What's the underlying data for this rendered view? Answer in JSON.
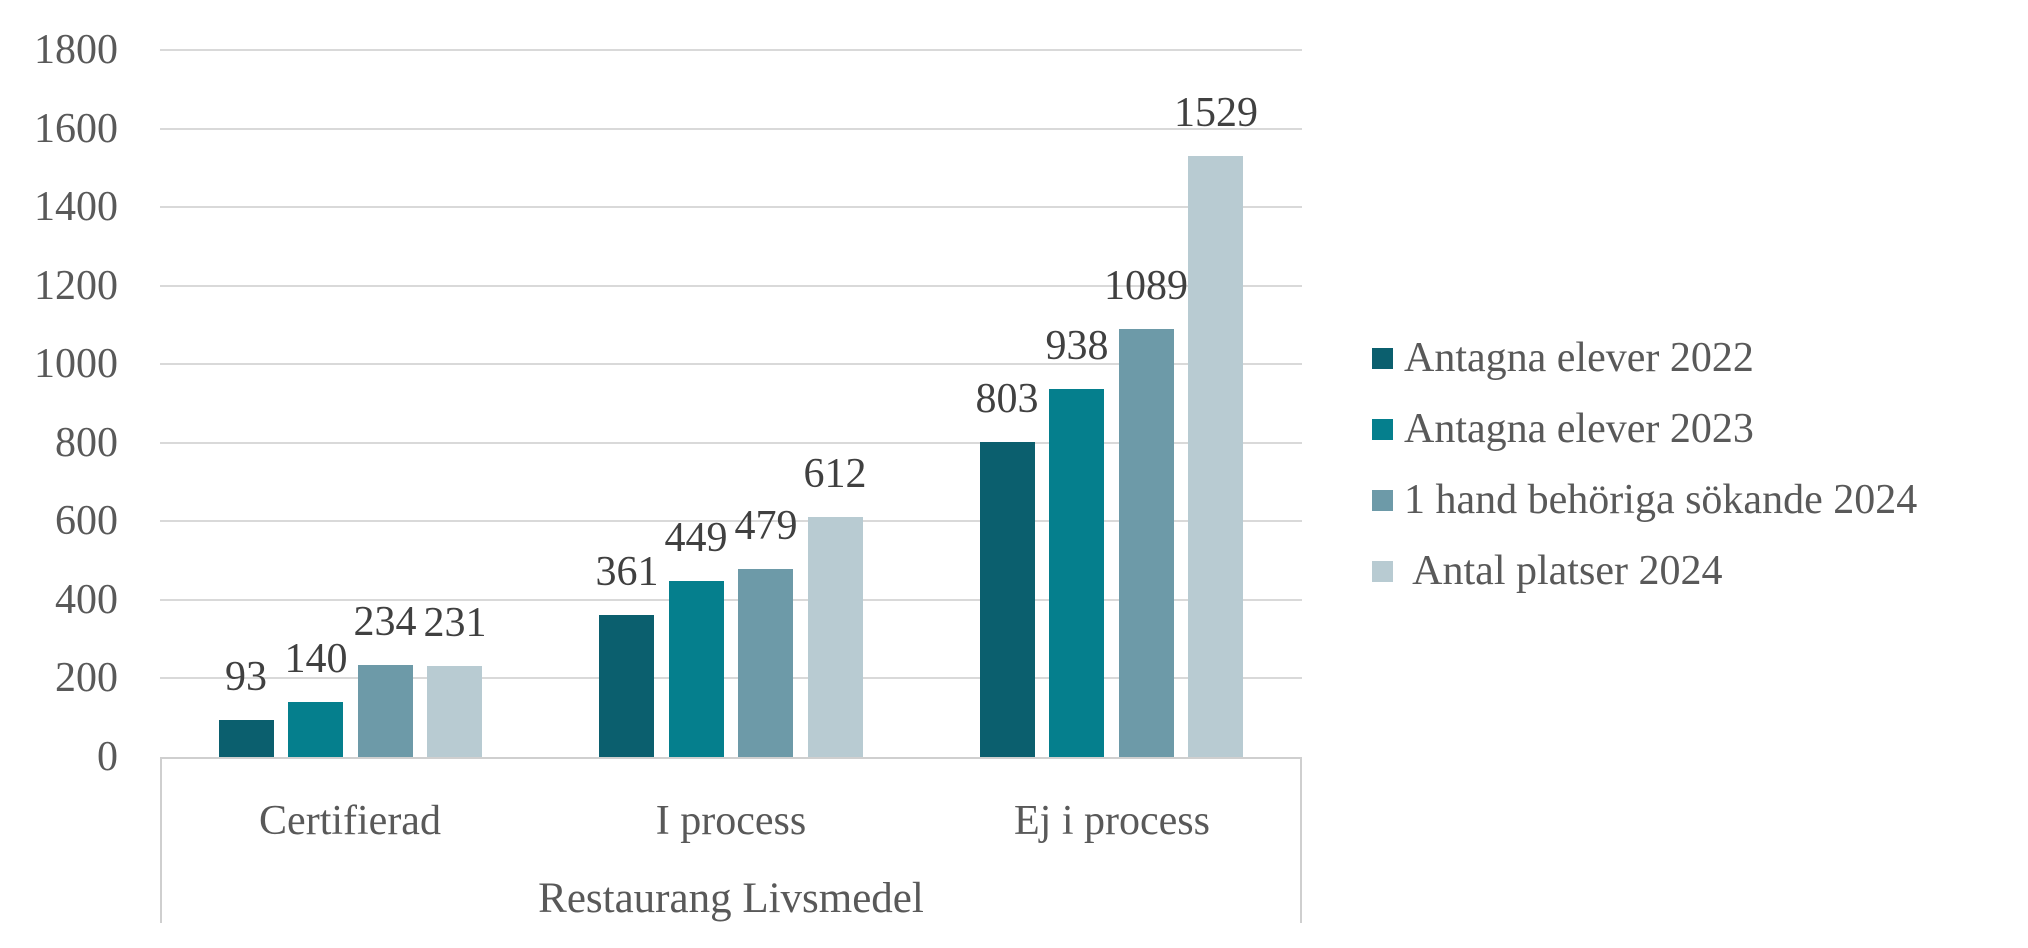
{
  "chart_data": {
    "type": "bar",
    "title": "",
    "categories": [
      "Certifierad",
      "I process",
      "Ej i process"
    ],
    "axis_group_label": "Restaurang Livsmedel",
    "series": [
      {
        "name": "Antagna elever 2022",
        "color": "#0b5f6e",
        "values": [
          93,
          361,
          803
        ]
      },
      {
        "name": "Antagna elever 2023",
        "color": "#057f8d",
        "values": [
          140,
          449,
          938
        ]
      },
      {
        "name": "1 hand behöriga sökande 2024",
        "color": "#6d9aa8",
        "values": [
          234,
          479,
          1089
        ]
      },
      {
        "name": " Antal platser 2024",
        "color": "#b8cbd2",
        "values": [
          231,
          612,
          1529
        ]
      }
    ],
    "y_axis": {
      "min": 0,
      "max": 1800,
      "step": 200,
      "tick_labels": [
        "0",
        "200",
        "400",
        "600",
        "800",
        "1000",
        "1200",
        "1400",
        "1600",
        "1800"
      ]
    },
    "data_labels_shown": true,
    "grid": true,
    "legend_position": "right"
  },
  "styles": {
    "background": "#ffffff",
    "grid_color": "#d9d9d9",
    "axis_box_border_color": "#cfcfcf",
    "axis_text_color": "#595959",
    "data_label_color": "#404040",
    "legend_text_color": "#595959"
  }
}
